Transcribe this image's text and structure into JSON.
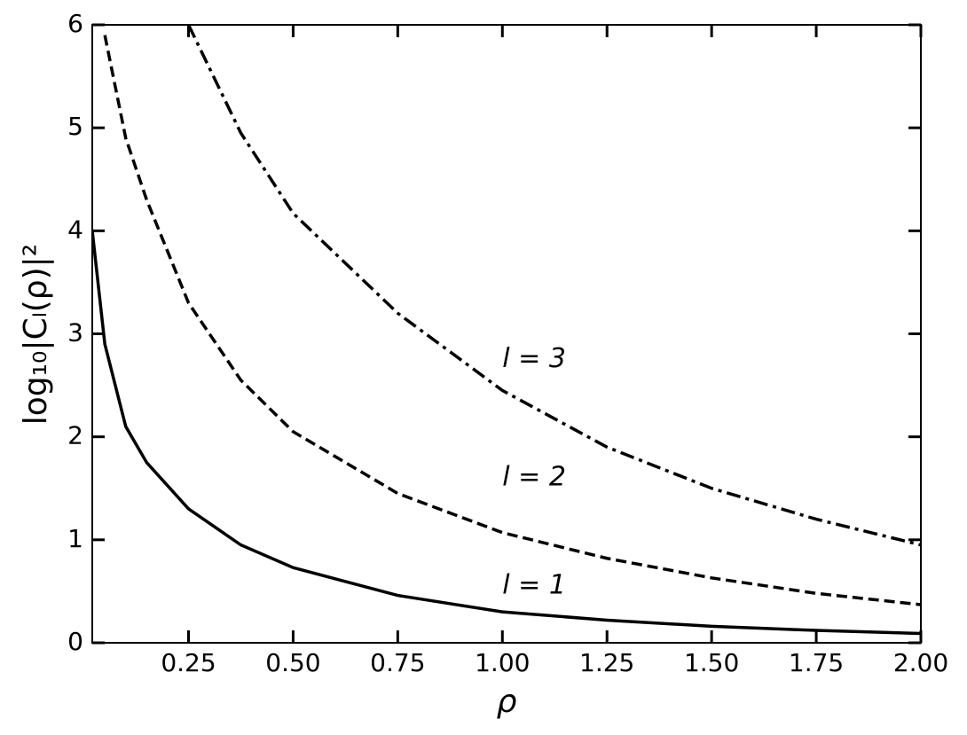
{
  "chart_data": {
    "type": "line",
    "xlabel": "ρ",
    "ylabel": "log₁₀|Cₗ(ρ)|²",
    "x": [
      0.02,
      0.05,
      0.1,
      0.15,
      0.25,
      0.375,
      0.5,
      0.75,
      1.0,
      1.25,
      1.5,
      1.75,
      2.0
    ],
    "series": [
      {
        "name": "l = 1",
        "color": "#000000",
        "linestyle": "solid",
        "values": [
          4.0,
          2.9,
          2.1,
          1.75,
          1.3,
          0.95,
          0.73,
          0.46,
          0.3,
          0.22,
          0.16,
          0.12,
          0.09
        ]
      },
      {
        "name": "l = 2",
        "color": "#000000",
        "linestyle": "dashed",
        "values": [
          null,
          5.9,
          4.9,
          4.3,
          3.3,
          2.55,
          2.05,
          1.45,
          1.07,
          0.82,
          0.63,
          0.48,
          0.37
        ]
      },
      {
        "name": "l = 3",
        "color": "#000000",
        "linestyle": "dashdot",
        "values": [
          null,
          null,
          null,
          null,
          6.0,
          4.95,
          4.17,
          3.2,
          2.45,
          1.9,
          1.5,
          1.2,
          0.95
        ]
      }
    ],
    "xlim": [
      0.02,
      2.0
    ],
    "ylim": [
      0,
      6
    ],
    "xticks": [
      0.25,
      {
        "value": 0.5,
        "label": "0.50"
      },
      0.75,
      {
        "value": 1.0,
        "label": "1.00"
      },
      1.25,
      {
        "value": 1.5,
        "label": "1.50"
      },
      1.75,
      {
        "value": 2.0,
        "label": "2.00"
      }
    ],
    "yticks": [
      0,
      1,
      2,
      3,
      4,
      5,
      6
    ],
    "grid": false
  }
}
